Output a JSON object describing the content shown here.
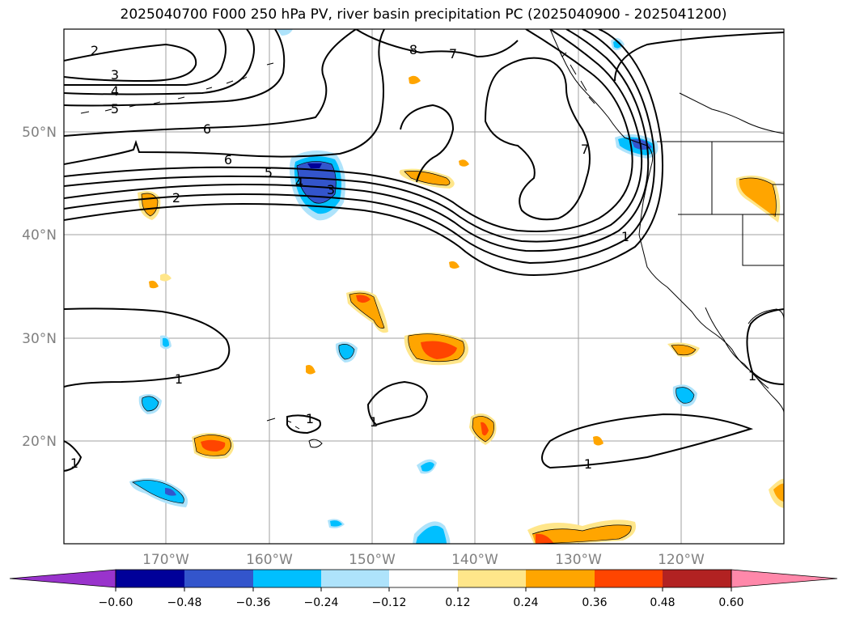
{
  "title": "2025040700 F000 250 hPa PV, river basin precipitation PC (2025040900 - 2025041200)",
  "lat_labels": [
    "50°N",
    "40°N",
    "30°N",
    "20°N"
  ],
  "lon_labels": [
    "170°W",
    "160°W",
    "150°W",
    "140°W",
    "130°W",
    "120°W"
  ],
  "contour_labels": [
    "2",
    "3",
    "4",
    "5",
    "6",
    "6",
    "5",
    "4",
    "3",
    "2",
    "8",
    "7",
    "7",
    "1",
    "1",
    "1",
    "1",
    "1",
    "1",
    "1"
  ],
  "colorbar": {
    "ticks": [
      "−0.60",
      "−0.48",
      "−0.36",
      "−0.24",
      "−0.12",
      "0.12",
      "0.24",
      "0.36",
      "0.48",
      "0.60"
    ],
    "colors": [
      "#9933cc",
      "#000099",
      "#3355cc",
      "#00bfff",
      "#aee3fb",
      "#ffffff",
      "#ffe68a",
      "#ffa500",
      "#ff4500",
      "#b22222",
      "#ff88aa"
    ]
  },
  "colors": {
    "pv_contour": "#000000",
    "coastline": "#000000",
    "grid": "#a0a0a0",
    "axis_label": "#808080"
  }
}
